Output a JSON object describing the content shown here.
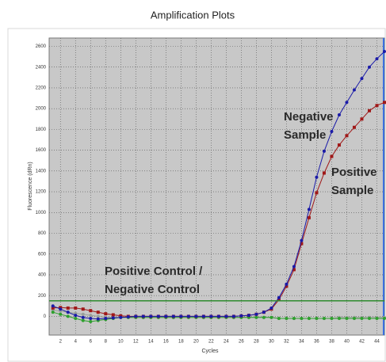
{
  "chart_data": {
    "type": "line",
    "title": "Amplification Plots",
    "xlabel": "Cycles",
    "ylabel": "Fluorescence (dRn)",
    "x": [
      1,
      2,
      3,
      4,
      5,
      6,
      7,
      8,
      9,
      10,
      11,
      12,
      13,
      14,
      15,
      16,
      17,
      18,
      19,
      20,
      21,
      22,
      23,
      24,
      25,
      26,
      27,
      28,
      29,
      30,
      31,
      32,
      33,
      34,
      35,
      36,
      37,
      38,
      39,
      40,
      41,
      42,
      43,
      44,
      45
    ],
    "series": [
      {
        "color": "#9aa09a",
        "marker": "circle",
        "values": [
          60,
          50,
          40,
          30,
          20,
          10,
          0,
          -10,
          -10,
          -10,
          -10,
          -10,
          -10,
          -10,
          -10,
          -10,
          -10,
          -10,
          -10,
          -10,
          -10,
          -10,
          -10,
          -10,
          -10,
          -10,
          -10,
          -10,
          -10,
          -10,
          -20,
          -20,
          -20,
          -20,
          -20,
          -20,
          -20,
          -20,
          -10,
          -10,
          -10,
          -10,
          -10,
          -10,
          -10
        ]
      },
      {
        "color": "#2ea02e",
        "marker": "circle",
        "values": [
          40,
          20,
          0,
          -20,
          -40,
          -50,
          -40,
          -30,
          -20,
          -10,
          -10,
          -10,
          -10,
          -10,
          -10,
          -10,
          -10,
          -10,
          -10,
          -10,
          -10,
          -10,
          -10,
          -10,
          -10,
          -10,
          -10,
          -10,
          -10,
          -10,
          -20,
          -20,
          -20,
          -20,
          -20,
          -20,
          -20,
          -20,
          -20,
          -20,
          -20,
          -20,
          -20,
          -20,
          -20
        ]
      },
      {
        "color": "#a01818",
        "marker": "square",
        "values": [
          80,
          85,
          80,
          80,
          70,
          55,
          40,
          25,
          15,
          5,
          0,
          0,
          0,
          0,
          0,
          0,
          0,
          0,
          0,
          0,
          0,
          0,
          0,
          0,
          0,
          5,
          10,
          20,
          40,
          70,
          160,
          290,
          450,
          700,
          950,
          1190,
          1380,
          1540,
          1650,
          1740,
          1820,
          1900,
          1980,
          2030,
          2060
        ]
      },
      {
        "color": "#1a1aa8",
        "marker": "circle",
        "values": [
          100,
          70,
          40,
          10,
          -10,
          -20,
          -25,
          -20,
          -15,
          -10,
          -5,
          0,
          0,
          0,
          0,
          0,
          0,
          0,
          0,
          0,
          0,
          0,
          0,
          0,
          0,
          5,
          10,
          20,
          40,
          80,
          180,
          310,
          480,
          730,
          1030,
          1340,
          1590,
          1780,
          1940,
          2060,
          2180,
          2290,
          2400,
          2480,
          2550
        ]
      }
    ],
    "threshold": 150,
    "threshold_color": "#2e8b2e",
    "xlim": [
      0.5,
      45
    ],
    "ylim": [
      -180,
      2680
    ],
    "xticks": [
      2,
      4,
      6,
      8,
      10,
      12,
      14,
      16,
      18,
      20,
      22,
      24,
      26,
      28,
      30,
      32,
      34,
      36,
      38,
      40,
      42,
      44
    ],
    "yticks": [
      0,
      200,
      400,
      600,
      800,
      1000,
      1200,
      1400,
      1600,
      1800,
      2000,
      2200,
      2400,
      2600
    ],
    "grid": true,
    "annotations": [
      {
        "lines": [
          "Negative",
          "Sample"
        ]
      },
      {
        "lines": [
          "Positive",
          "Sample"
        ]
      },
      {
        "lines": [
          "Positive Control /",
          "Negative Control"
        ]
      }
    ]
  }
}
